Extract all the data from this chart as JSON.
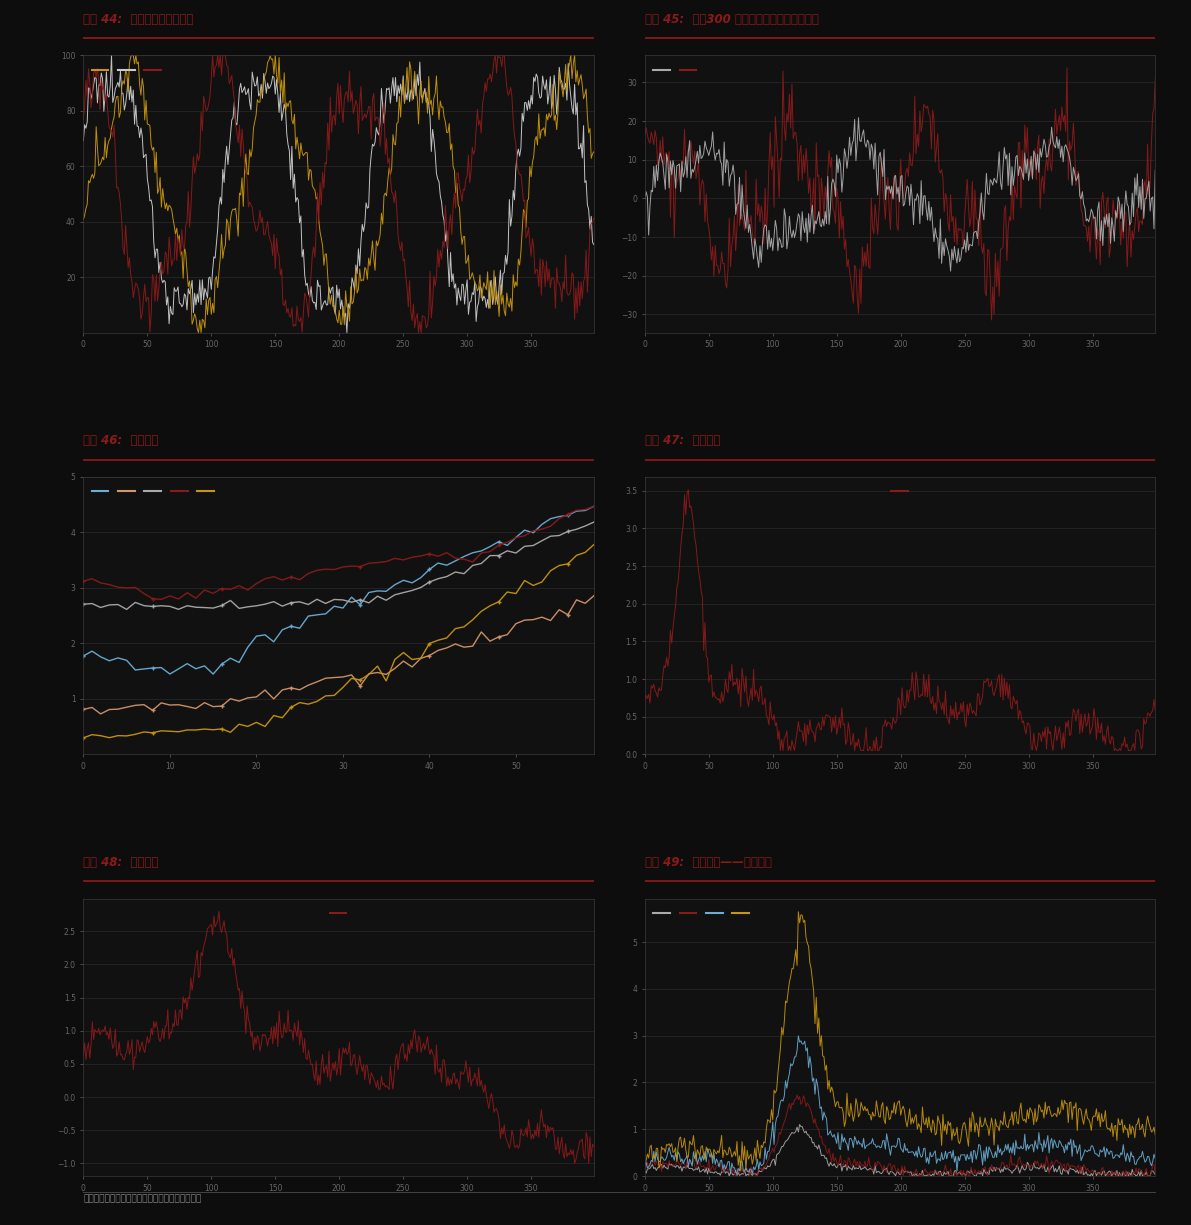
{
  "bg_color": "#0d0d0d",
  "plot_bg": "#111111",
  "title_color": "#8b1a1a",
  "line_color_dark_red": "#8b1a1a",
  "line_color_gold": "#c8960c",
  "line_color_white": "#cccccc",
  "line_color_blue": "#6baed6",
  "line_color_gray": "#aaaaaa",
  "line_color_orange_light": "#d4956a",
  "grid_color": "#2a2a2a",
  "tick_color": "#666666",
  "titles": [
    "图表 44:  股债估值百分位对比",
    "图表 45:  沪深300 指数与股债估值百分位之差",
    "图表 46:  期限结构",
    "图表 47:  期限利差",
    "图表 48:  信用利差",
    "图表 49:  信用利差——不同评级"
  ],
  "footer": "资料来源：彭博资讯，万得资讯，中金公司研究部"
}
